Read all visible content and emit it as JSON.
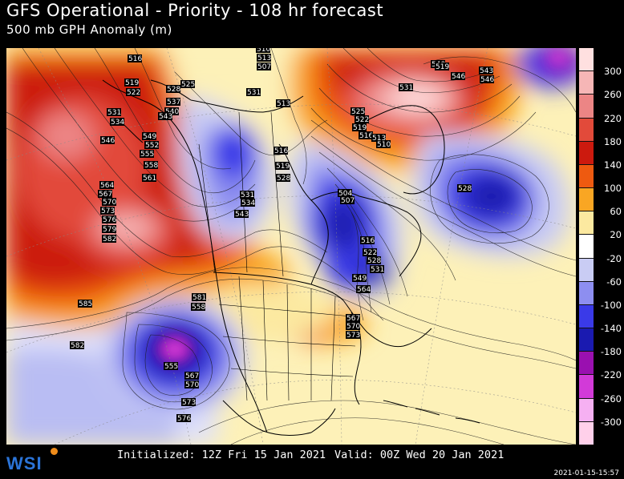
{
  "header": {
    "title": "GFS Operational - Priority - 108 hr forecast",
    "subtitle": "500 mb GPH Anomaly (m)"
  },
  "colorbar": {
    "labels": [
      "300",
      "260",
      "220",
      "180",
      "140",
      "100",
      "60",
      "20",
      "-20",
      "-60",
      "-100",
      "-140",
      "-180",
      "-220",
      "-260",
      "-300"
    ],
    "colors": [
      "#ffe0e0",
      "#f6b6b6",
      "#ec8585",
      "#e24a3a",
      "#cc1a0e",
      "#ee5a10",
      "#f9a623",
      "#fce9a0",
      "#ffffff",
      "#c9ccf4",
      "#8d8ef0",
      "#3a3ae8",
      "#1a1ab0",
      "#9a10b0",
      "#d23ad8",
      "#f6b0f2",
      "#ffd0ea"
    ]
  },
  "contour_labels": [
    {
      "text": "516"
    },
    {
      "text": "519"
    },
    {
      "text": "522"
    },
    {
      "text": "528"
    },
    {
      "text": "531"
    },
    {
      "text": "534"
    },
    {
      "text": "537"
    },
    {
      "text": "540"
    },
    {
      "text": "543"
    },
    {
      "text": "525"
    },
    {
      "text": "546"
    },
    {
      "text": "549"
    },
    {
      "text": "552"
    },
    {
      "text": "555"
    },
    {
      "text": "558"
    },
    {
      "text": "561"
    },
    {
      "text": "564"
    },
    {
      "text": "567"
    },
    {
      "text": "570"
    },
    {
      "text": "573"
    },
    {
      "text": "576"
    },
    {
      "text": "579"
    },
    {
      "text": "582"
    },
    {
      "text": "585"
    },
    {
      "text": "582"
    },
    {
      "text": "510"
    },
    {
      "text": "513"
    },
    {
      "text": "507"
    },
    {
      "text": "513"
    },
    {
      "text": "516"
    },
    {
      "text": "519"
    },
    {
      "text": "528"
    },
    {
      "text": "531"
    },
    {
      "text": "534"
    },
    {
      "text": "543"
    },
    {
      "text": "546"
    },
    {
      "text": "540"
    },
    {
      "text": "519"
    },
    {
      "text": "528"
    },
    {
      "text": "525"
    },
    {
      "text": "522"
    },
    {
      "text": "519"
    },
    {
      "text": "516"
    },
    {
      "text": "513"
    },
    {
      "text": "510"
    },
    {
      "text": "504"
    },
    {
      "text": "507"
    },
    {
      "text": "516"
    },
    {
      "text": "522"
    },
    {
      "text": "528"
    },
    {
      "text": "531"
    },
    {
      "text": "549"
    },
    {
      "text": "564"
    },
    {
      "text": "567"
    },
    {
      "text": "570"
    },
    {
      "text": "573"
    },
    {
      "text": "581"
    },
    {
      "text": "558"
    },
    {
      "text": "555"
    },
    {
      "text": "567"
    },
    {
      "text": "570"
    },
    {
      "text": "573"
    },
    {
      "text": "576"
    },
    {
      "text": "531"
    },
    {
      "text": "531"
    },
    {
      "text": "543"
    },
    {
      "text": "546"
    }
  ],
  "footer": {
    "logo": "WSI",
    "initialized": "Initialized: 12Z Fri 15 Jan 2021",
    "valid": "Valid: 00Z Wed 20 Jan 2021",
    "timestamp": "2021-01-15-15:57"
  }
}
